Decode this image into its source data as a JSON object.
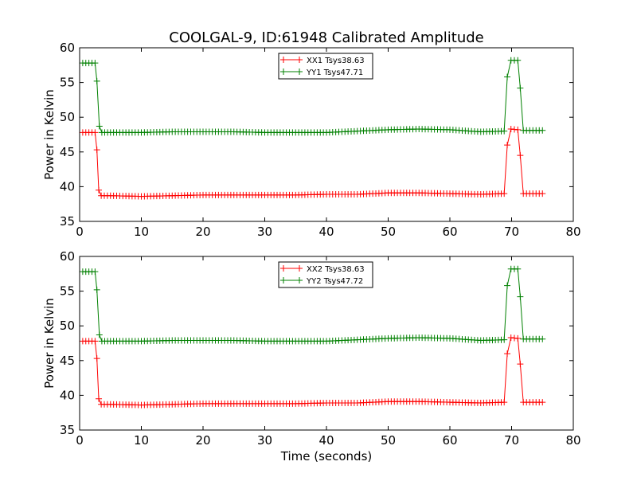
{
  "figure_title": "COOLGAL-9, ID:61948 Calibrated Amplitude",
  "colors": {
    "red": "#ff0000",
    "green": "#008000",
    "axes": "#000000"
  },
  "chart_data": [
    {
      "type": "line",
      "title": "COOLGAL-9, ID:61948 Calibrated Amplitude",
      "xlabel": "",
      "ylabel": "Power in Kelvin",
      "xlim": [
        0,
        80
      ],
      "ylim": [
        35,
        60
      ],
      "xticks": [
        0,
        10,
        20,
        30,
        40,
        50,
        60,
        70,
        80
      ],
      "yticks": [
        35,
        40,
        45,
        50,
        55,
        60
      ],
      "grid": false,
      "legend_position": "top-center",
      "marker": "+",
      "series": [
        {
          "name": "XX1 Tsys38.63",
          "color": "#ff0000",
          "points": [
            [
              0.5,
              47.8
            ],
            [
              1.0,
              47.8
            ],
            [
              1.5,
              47.8
            ],
            [
              2.0,
              47.8
            ],
            [
              2.5,
              47.8
            ],
            [
              2.8,
              45.3
            ],
            [
              3.1,
              39.5
            ],
            [
              3.5,
              38.7
            ],
            [
              5,
              38.7
            ],
            [
              10,
              38.6
            ],
            [
              15,
              38.7
            ],
            [
              20,
              38.8
            ],
            [
              25,
              38.8
            ],
            [
              30,
              38.8
            ],
            [
              35,
              38.8
            ],
            [
              40,
              38.9
            ],
            [
              45,
              38.9
            ],
            [
              50,
              39.1
            ],
            [
              55,
              39.1
            ],
            [
              60,
              39.0
            ],
            [
              65,
              38.9
            ],
            [
              68.8,
              39.0
            ],
            [
              69.3,
              46.0
            ],
            [
              69.9,
              48.3
            ],
            [
              71.0,
              48.2
            ],
            [
              71.4,
              44.5
            ],
            [
              71.9,
              39.0
            ],
            [
              75.0,
              39.0
            ]
          ]
        },
        {
          "name": "YY1 Tsys47.71",
          "color": "#008000",
          "points": [
            [
              0.5,
              57.8
            ],
            [
              1.0,
              57.8
            ],
            [
              1.5,
              57.8
            ],
            [
              2.0,
              57.8
            ],
            [
              2.5,
              57.8
            ],
            [
              2.8,
              55.2
            ],
            [
              3.2,
              48.7
            ],
            [
              3.6,
              47.8
            ],
            [
              5,
              47.8
            ],
            [
              10,
              47.8
            ],
            [
              15,
              47.9
            ],
            [
              20,
              47.9
            ],
            [
              25,
              47.9
            ],
            [
              30,
              47.8
            ],
            [
              35,
              47.8
            ],
            [
              40,
              47.8
            ],
            [
              45,
              48.0
            ],
            [
              50,
              48.2
            ],
            [
              55,
              48.3
            ],
            [
              60,
              48.2
            ],
            [
              65,
              47.9
            ],
            [
              68.8,
              48.0
            ],
            [
              69.3,
              55.8
            ],
            [
              69.9,
              58.2
            ],
            [
              71.0,
              58.2
            ],
            [
              71.4,
              54.2
            ],
            [
              71.9,
              48.1
            ],
            [
              75.0,
              48.1
            ]
          ]
        }
      ]
    },
    {
      "type": "line",
      "title": "",
      "xlabel": "Time (seconds)",
      "ylabel": "Power in Kelvin",
      "xlim": [
        0,
        80
      ],
      "ylim": [
        35,
        60
      ],
      "xticks": [
        0,
        10,
        20,
        30,
        40,
        50,
        60,
        70,
        80
      ],
      "yticks": [
        35,
        40,
        45,
        50,
        55,
        60
      ],
      "grid": false,
      "legend_position": "top-center",
      "marker": "+",
      "series": [
        {
          "name": "XX2 Tsys38.63",
          "color": "#ff0000",
          "points": [
            [
              0.5,
              47.8
            ],
            [
              1.0,
              47.8
            ],
            [
              1.5,
              47.8
            ],
            [
              2.0,
              47.8
            ],
            [
              2.5,
              47.8
            ],
            [
              2.8,
              45.3
            ],
            [
              3.1,
              39.5
            ],
            [
              3.5,
              38.7
            ],
            [
              5,
              38.7
            ],
            [
              10,
              38.6
            ],
            [
              15,
              38.7
            ],
            [
              20,
              38.8
            ],
            [
              25,
              38.8
            ],
            [
              30,
              38.8
            ],
            [
              35,
              38.8
            ],
            [
              40,
              38.9
            ],
            [
              45,
              38.9
            ],
            [
              50,
              39.1
            ],
            [
              55,
              39.1
            ],
            [
              60,
              39.0
            ],
            [
              65,
              38.9
            ],
            [
              68.8,
              39.0
            ],
            [
              69.3,
              46.0
            ],
            [
              69.9,
              48.3
            ],
            [
              71.0,
              48.2
            ],
            [
              71.4,
              44.5
            ],
            [
              71.9,
              39.0
            ],
            [
              75.0,
              39.0
            ]
          ]
        },
        {
          "name": "YY2 Tsys47.72",
          "color": "#008000",
          "points": [
            [
              0.5,
              57.8
            ],
            [
              1.0,
              57.8
            ],
            [
              1.5,
              57.8
            ],
            [
              2.0,
              57.8
            ],
            [
              2.5,
              57.8
            ],
            [
              2.8,
              55.2
            ],
            [
              3.2,
              48.7
            ],
            [
              3.6,
              47.8
            ],
            [
              5,
              47.8
            ],
            [
              10,
              47.8
            ],
            [
              15,
              47.9
            ],
            [
              20,
              47.9
            ],
            [
              25,
              47.9
            ],
            [
              30,
              47.8
            ],
            [
              35,
              47.8
            ],
            [
              40,
              47.8
            ],
            [
              45,
              48.0
            ],
            [
              50,
              48.2
            ],
            [
              55,
              48.3
            ],
            [
              60,
              48.2
            ],
            [
              65,
              47.9
            ],
            [
              68.8,
              48.0
            ],
            [
              69.3,
              55.8
            ],
            [
              69.9,
              58.2
            ],
            [
              71.0,
              58.2
            ],
            [
              71.4,
              54.2
            ],
            [
              71.9,
              48.1
            ],
            [
              75.0,
              48.1
            ]
          ]
        }
      ]
    }
  ]
}
